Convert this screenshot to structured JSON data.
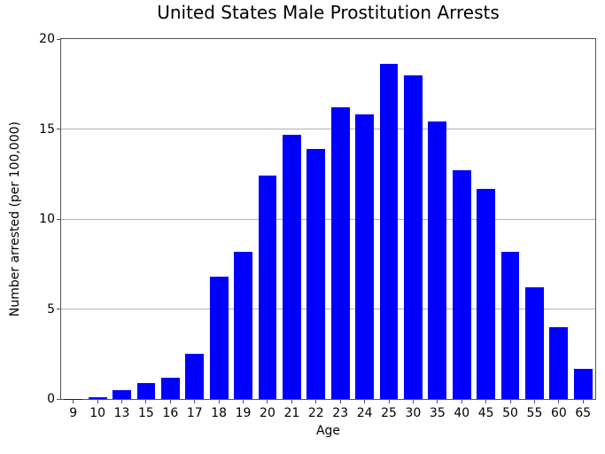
{
  "chart_data": {
    "type": "bar",
    "title": "United States Male Prostitution Arrests",
    "xlabel": "Age",
    "ylabel": "Number arrested (per 100,000)",
    "categories": [
      "9",
      "10",
      "13",
      "15",
      "16",
      "17",
      "18",
      "19",
      "20",
      "21",
      "22",
      "23",
      "24",
      "25",
      "30",
      "35",
      "40",
      "45",
      "50",
      "55",
      "60",
      "65"
    ],
    "values": [
      0.02,
      0.1,
      0.5,
      0.9,
      1.2,
      2.5,
      6.8,
      8.2,
      12.4,
      14.7,
      13.9,
      16.2,
      15.8,
      18.6,
      18.0,
      15.4,
      12.7,
      11.7,
      8.2,
      6.2,
      4.0,
      1.7
    ],
    "ylim": [
      0,
      20
    ],
    "yticks": [
      0,
      5,
      10,
      15,
      20
    ],
    "grid": "horizontal",
    "legend_position": "none",
    "colors": {
      "bar": "#0000ff",
      "grid": "#b0b0b0",
      "spine": "#555555",
      "text": "#000000",
      "background": "#ffffff"
    }
  }
}
